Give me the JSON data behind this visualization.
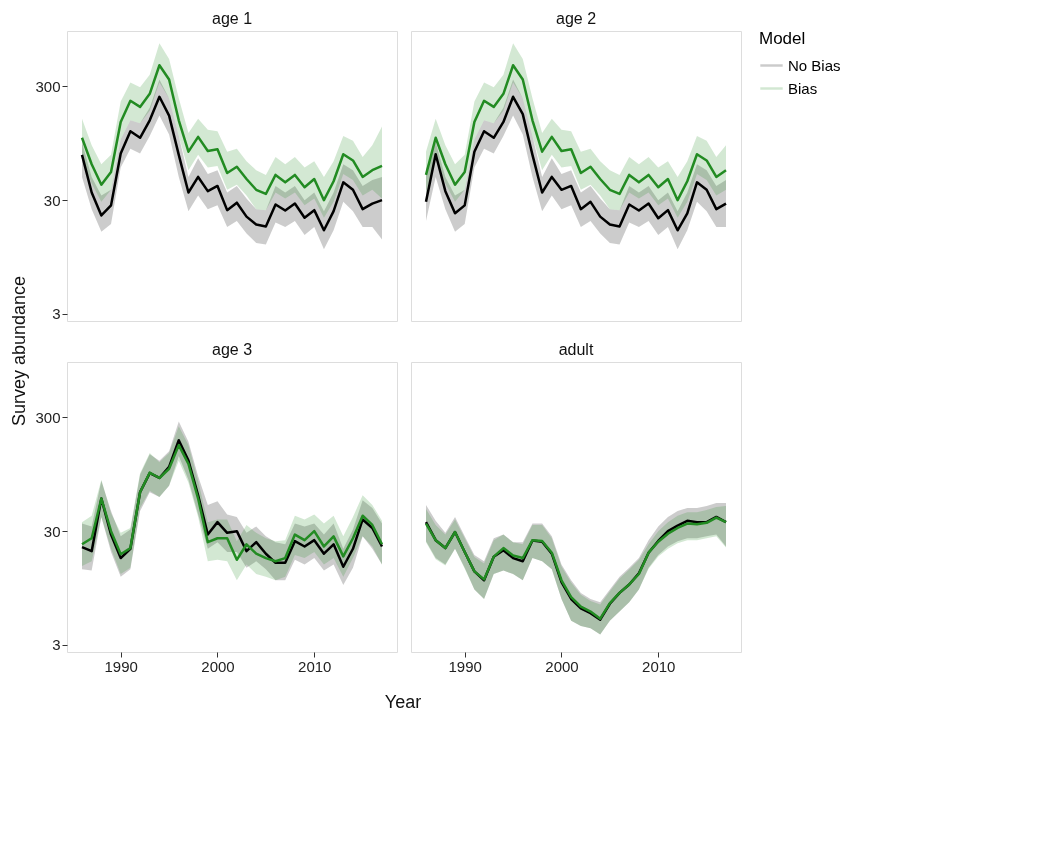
{
  "chart_data": [
    {
      "type": "line",
      "title": "age 1",
      "ylabel": "Survey abundance",
      "log": "y",
      "xlim": [
        1984.45,
        2018.55
      ],
      "xticks": [
        1990,
        2000,
        2010
      ],
      "ylim": [
        2.6,
        920
      ],
      "yticks": [
        3,
        30,
        300
      ],
      "tick_labels": "y",
      "line_style": "solid",
      "marker": "none",
      "x": [
        1986,
        1987,
        1988,
        1989,
        1990,
        1991,
        1992,
        1993,
        1994,
        1995,
        1996,
        1997,
        1998,
        1999,
        2000,
        2001,
        2002,
        2003,
        2004,
        2005,
        2006,
        2007,
        2008,
        2009,
        2010,
        2011,
        2012,
        2013,
        2014,
        2015,
        2016,
        2017
      ],
      "series": [
        {
          "color": "#000000",
          "values": [
            75,
            35,
            22,
            27,
            77,
            121,
            106,
            151,
            243,
            166,
            75,
            35,
            48,
            36,
            40,
            24.5,
            28.5,
            21.5,
            18.3,
            17.6,
            27.5,
            24.3,
            28,
            21,
            24.5,
            16.3,
            24,
            43,
            37,
            25,
            28,
            30
          ],
          "upper": [
            97,
            48,
            33,
            37,
            103,
            151,
            142,
            195,
            345,
            236,
            110,
            48,
            70,
            51,
            55,
            35,
            40,
            31,
            25,
            24.5,
            40,
            35,
            40,
            30,
            35,
            24,
            35,
            62,
            55,
            40,
            45,
            48
          ],
          "lower": [
            48,
            25,
            15.8,
            18.5,
            58,
            85,
            77,
            110,
            166,
            113,
            48,
            24,
            33,
            25,
            27,
            17.4,
            19.7,
            15.3,
            12.6,
            12.2,
            19.1,
            17.4,
            19.7,
            14.8,
            17.4,
            11.1,
            16.3,
            29,
            24,
            17.4,
            17.4,
            13.5
          ]
        },
        {
          "color": "#228b22",
          "values": [
            106,
            62,
            41,
            53,
            146,
            224,
            198,
            258,
            460,
            345,
            151,
            80,
            108,
            81,
            84,
            52,
            59,
            46,
            37,
            34,
            50,
            43,
            50,
            39,
            46,
            30,
            44,
            76,
            67,
            48,
            55,
            60
          ],
          "upper": [
            156,
            91,
            62,
            75,
            221,
            324,
            294,
            380,
            717,
            522,
            236,
            117,
            156,
            125,
            121,
            80,
            85,
            66,
            55,
            50,
            72,
            62,
            72,
            58,
            66,
            48,
            66,
            110,
            100,
            72,
            91,
            133
          ],
          "lower": [
            70,
            42,
            29,
            37,
            103,
            151,
            142,
            183,
            324,
            236,
            110,
            55,
            75,
            58,
            60,
            37,
            41,
            33,
            25,
            24.5,
            35,
            31,
            35,
            27,
            31,
            21,
            29,
            51,
            45,
            33,
            37,
            31
          ]
        }
      ]
    },
    {
      "type": "line",
      "title": "age 2",
      "legend": "right",
      "legend_title": "Model",
      "log": "y",
      "xlim": [
        1984.45,
        2018.55
      ],
      "xticks": [
        1990,
        2000,
        2010
      ],
      "ylim": [
        2.6,
        920
      ],
      "yticks": [
        3,
        30,
        300
      ],
      "tick_labels": false,
      "line_style": "solid",
      "marker": "none",
      "x": [
        1986,
        1987,
        1988,
        1989,
        1990,
        1991,
        1992,
        1993,
        1994,
        1995,
        1996,
        1997,
        1998,
        1999,
        2000,
        2001,
        2002,
        2003,
        2004,
        2005,
        2006,
        2007,
        2008,
        2009,
        2010,
        2011,
        2012,
        2013,
        2014,
        2015,
        2016,
        2017
      ],
      "series": [
        {
          "name": "No Bias",
          "color": "#000000",
          "values": [
            29,
            76,
            36,
            23,
            27,
            80,
            121,
            106,
            146,
            243,
            171,
            75,
            35,
            48,
            37,
            40,
            25,
            29,
            21.5,
            18.3,
            17.6,
            27.5,
            24.3,
            28,
            20.8,
            24.5,
            16.3,
            23,
            43,
            37,
            25,
            28
          ],
          "upper": [
            55,
            97,
            48,
            33,
            37,
            103,
            151,
            142,
            195,
            345,
            236,
            110,
            48,
            70,
            51,
            55,
            35,
            40,
            31,
            25,
            24.5,
            40,
            35,
            40,
            30,
            35,
            24,
            35,
            62,
            55,
            40,
            45
          ],
          "lower": [
            19.7,
            48,
            25,
            15.8,
            18.5,
            58,
            85,
            77,
            110,
            166,
            113,
            48,
            24,
            33,
            25,
            27,
            17.4,
            19.7,
            15.3,
            12.6,
            12.2,
            19.1,
            17.4,
            19.7,
            14.8,
            17.4,
            11.1,
            16.3,
            29,
            24,
            17.4,
            17.4
          ]
        },
        {
          "name": "Bias",
          "color": "#228b22",
          "values": [
            50,
            106,
            62,
            41,
            53,
            146,
            224,
            198,
            258,
            460,
            345,
            151,
            80,
            108,
            81,
            84,
            52,
            59,
            46,
            37,
            34,
            50,
            43,
            50,
            39,
            46,
            30,
            44,
            76,
            67,
            48,
            55
          ],
          "upper": [
            80,
            156,
            91,
            62,
            75,
            221,
            324,
            294,
            380,
            717,
            522,
            236,
            117,
            156,
            125,
            121,
            80,
            85,
            66,
            55,
            50,
            72,
            62,
            72,
            58,
            66,
            48,
            66,
            110,
            100,
            72,
            91
          ],
          "lower": [
            35,
            70,
            42,
            29,
            37,
            103,
            151,
            142,
            183,
            324,
            236,
            110,
            55,
            75,
            58,
            60,
            37,
            41,
            33,
            25,
            24.5,
            35,
            31,
            35,
            27,
            31,
            21,
            29,
            51,
            45,
            33,
            37
          ]
        }
      ]
    },
    {
      "type": "line",
      "title": "age 3",
      "xlabel": "Year",
      "log": "y",
      "xlim": [
        1984.45,
        2018.55
      ],
      "xticks": [
        1990,
        2000,
        2010
      ],
      "ylim": [
        2.6,
        920
      ],
      "yticks": [
        3,
        30,
        300
      ],
      "line_style": "solid",
      "marker": "none",
      "x": [
        1986,
        1987,
        1988,
        1989,
        1990,
        1991,
        1992,
        1993,
        1994,
        1995,
        1996,
        1997,
        1998,
        1999,
        2000,
        2001,
        2002,
        2003,
        2004,
        2005,
        2006,
        2007,
        2008,
        2009,
        2010,
        2011,
        2012,
        2013,
        2014,
        2015,
        2016,
        2017
      ],
      "series": [
        {
          "color": "#000000",
          "values": [
            21.7,
            20,
            58,
            28,
            17.4,
            21,
            66,
            97,
            88,
            110,
            189,
            125,
            62,
            28,
            36,
            29,
            30,
            20,
            24,
            19,
            15.8,
            15.8,
            24.5,
            22,
            25,
            19,
            23,
            14.6,
            21,
            38,
            32,
            22
          ],
          "upper": [
            35,
            33,
            83,
            45,
            27,
            31,
            94,
            142,
            125,
            151,
            276,
            183,
            91,
            51,
            55,
            42,
            40,
            29,
            33,
            27,
            24,
            23,
            35,
            33,
            35,
            28,
            35,
            21,
            31,
            56,
            48,
            35
          ],
          "lower": [
            13.9,
            13.5,
            40,
            19.7,
            11.9,
            13.9,
            45,
            66,
            60,
            75,
            137,
            85,
            42,
            21,
            24,
            19.7,
            19.7,
            14.3,
            16.3,
            13.9,
            11.1,
            11.1,
            16.8,
            15.3,
            17.4,
            13.5,
            15.3,
            10.1,
            14.3,
            27,
            21,
            15.3
          ]
        },
        {
          "color": "#228b22",
          "values": [
            23,
            26,
            58,
            30,
            18.8,
            21.3,
            66,
            98,
            88,
            106,
            171,
            117,
            58,
            24,
            26,
            26,
            16.8,
            23,
            19,
            17.4,
            16.3,
            17.4,
            28,
            25,
            30,
            22,
            27,
            18,
            26,
            41,
            34,
            23
          ],
          "upper": [
            36,
            41,
            85,
            43,
            29,
            32,
            97,
            146,
            121,
            146,
            251,
            171,
            83,
            36,
            38,
            38,
            24.5,
            34,
            29,
            26,
            24.5,
            25,
            41,
            38,
            42,
            35,
            41,
            27,
            40,
            62,
            51,
            37
          ],
          "lower": [
            14.8,
            16.3,
            40,
            21,
            12.6,
            14.3,
            48,
            68,
            60,
            75,
            125,
            80,
            40,
            16.3,
            16.8,
            16.3,
            11.1,
            15.3,
            12.6,
            11.9,
            11.1,
            11.9,
            18.5,
            17.4,
            19.7,
            15.3,
            17.4,
            11.9,
            17.4,
            27,
            22,
            15.3
          ]
        }
      ]
    },
    {
      "type": "line",
      "title": "adult",
      "log": "y",
      "xlim": [
        1984.45,
        2018.55
      ],
      "xticks": [
        1990,
        2000,
        2010
      ],
      "ylim": [
        2.6,
        920
      ],
      "yticks": [
        3,
        30,
        300
      ],
      "tick_labels": "x",
      "line_style": "solid",
      "marker": "none",
      "x": [
        1986,
        1987,
        1988,
        1989,
        1990,
        1991,
        1992,
        1993,
        1994,
        1995,
        1996,
        1997,
        1998,
        1999,
        2000,
        2001,
        2002,
        2003,
        2004,
        2005,
        2006,
        2007,
        2008,
        2009,
        2010,
        2011,
        2012,
        2013,
        2014,
        2015,
        2016,
        2017
      ],
      "series": [
        {
          "color": "#000000",
          "values": [
            36,
            25,
            21.3,
            29.5,
            19.7,
            13.3,
            11.1,
            17.9,
            20.4,
            17.4,
            16.3,
            24.8,
            24.2,
            19,
            10.7,
            7.6,
            6.3,
            5.7,
            5,
            6.9,
            8.6,
            10.2,
            12.8,
            19.4,
            24.6,
            30,
            33.5,
            37,
            36,
            36,
            40,
            36
          ],
          "upper": [
            51,
            37,
            29,
            40,
            27,
            18.5,
            16.3,
            26,
            28,
            24,
            24,
            35,
            35,
            27,
            15.3,
            11.1,
            8.6,
            7.6,
            7.1,
            9.2,
            11.9,
            14.3,
            17.4,
            25,
            33,
            40,
            45,
            48,
            48,
            50,
            53,
            53
          ],
          "lower": [
            24.5,
            17.4,
            15.3,
            21,
            14.3,
            9.2,
            7.6,
            12.6,
            13.5,
            12.6,
            11.1,
            17.4,
            16.3,
            13.9,
            7.6,
            4.9,
            4.4,
            4.2,
            3.7,
            4.9,
            5.9,
            7.1,
            9.2,
            14.3,
            18.5,
            22,
            24.5,
            26,
            26,
            27,
            28,
            22
          ]
        },
        {
          "color": "#228b22",
          "values": [
            35,
            25,
            21.3,
            29.5,
            19.7,
            13.3,
            11.3,
            17.9,
            21.3,
            18.3,
            17.4,
            25,
            24.6,
            19.4,
            11.1,
            7.9,
            6.5,
            5.9,
            5.1,
            7,
            8.6,
            10.2,
            12.6,
            19.4,
            24.2,
            28.5,
            32,
            35,
            34.5,
            35.5,
            39.5,
            36
          ],
          "upper": [
            47,
            34,
            28,
            38,
            26,
            17.8,
            15.6,
            25,
            28,
            24,
            23,
            34,
            34,
            26,
            14.7,
            10.6,
            8.3,
            7.3,
            6.8,
            8.9,
            11.5,
            13.8,
            16.8,
            23,
            30,
            36,
            41,
            44,
            44,
            46,
            49,
            50
          ],
          "lower": [
            24,
            17,
            15,
            21,
            14,
            9.2,
            7.6,
            12.6,
            13.5,
            12.6,
            11.1,
            17.4,
            16.3,
            13.9,
            7.6,
            4.9,
            4.4,
            4.2,
            3.7,
            4.9,
            5.9,
            7.1,
            9.2,
            14,
            18,
            21,
            23.5,
            25,
            25,
            26,
            27,
            21.5
          ]
        }
      ]
    }
  ]
}
